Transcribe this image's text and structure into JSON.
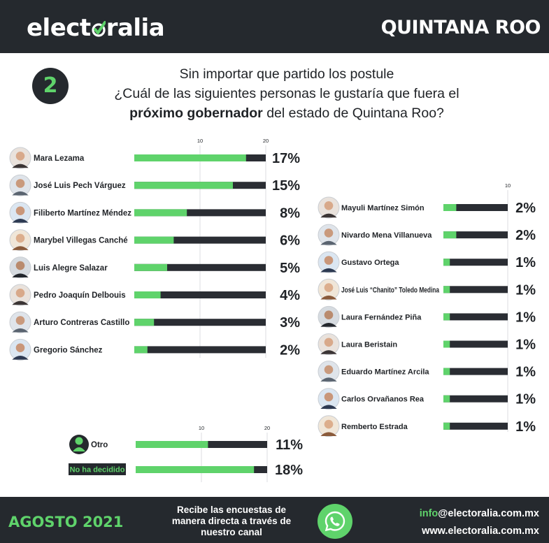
{
  "header": {
    "logo_pre": "elect",
    "logo_post": "ralia",
    "region": "QUINTANA ROO"
  },
  "question": {
    "number": "2",
    "line1": "Sin importar que partido los postule",
    "line2": "¿Cuál de las siguientes personas le gustaría que fuera el",
    "line3_bold": "próximo gobernador",
    "line3_rest": " del estado de Quintana Roo?"
  },
  "chart_data": [
    {
      "type": "bar",
      "orientation": "horizontal",
      "xlim": [
        0,
        20
      ],
      "ticks": [
        10,
        20
      ],
      "grid": true,
      "categories": [
        "Mara Lezama",
        "José Luis Pech Várguez",
        "Filiberto Martínez Méndez",
        "Marybel Villegas Canché",
        "Luis Alegre Salazar",
        "Pedro Joaquín Delbouis",
        "Arturo Contreras Castillo",
        "Gregorio Sánchez"
      ],
      "values": [
        17,
        15,
        8,
        6,
        5,
        4,
        3,
        2
      ],
      "data_labels": [
        "17%",
        "15%",
        "8%",
        "6%",
        "5%",
        "4%",
        "3%",
        "2%"
      ]
    },
    {
      "type": "bar",
      "orientation": "horizontal",
      "xlim": [
        0,
        10
      ],
      "ticks": [
        10
      ],
      "grid": true,
      "categories": [
        "Mayuli Martínez Simón",
        "Nivardo Mena Villanueva",
        "Gustavo Ortega",
        "José Luis “Chanito” Toledo Medina",
        "Laura Fernández Piña",
        "Laura Beristain",
        "Eduardo Martínez Arcila",
        "Carlos Orvañanos Rea",
        "Remberto Estrada"
      ],
      "values": [
        2,
        2,
        1,
        1,
        1,
        1,
        1,
        1,
        1
      ],
      "data_labels": [
        "2%",
        "2%",
        "1%",
        "1%",
        "1%",
        "1%",
        "1%",
        "1%",
        "1%"
      ]
    },
    {
      "type": "bar",
      "orientation": "horizontal",
      "xlim": [
        0,
        20
      ],
      "ticks": [
        10,
        20
      ],
      "grid": true,
      "categories": [
        "Otro",
        "No ha decidido"
      ],
      "values": [
        11,
        18
      ],
      "data_labels": [
        "11%",
        "18%"
      ]
    }
  ],
  "colors": {
    "dark": "#25292e",
    "green": "#5fd36b",
    "bar_track": "#2a2d33"
  },
  "footer": {
    "date": "AGOSTO 2021",
    "receive_text": "Recibe las encuestas de manera directa a través de nuestro canal",
    "whatsapp_icon": "whatsapp-icon",
    "email_green": "info",
    "email_rest": "@electoralia.com.mx",
    "website": "www.electoralia.com.mx"
  }
}
